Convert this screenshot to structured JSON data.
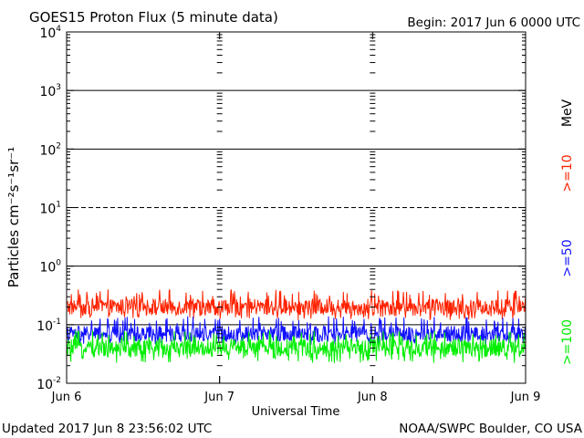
{
  "chart_data": {
    "type": "line",
    "title": "GOES15 Proton Flux (5 minute data)",
    "begin_label": "Begin: 2017 Jun 6 0000 UTC",
    "xlabel": "Universal Time",
    "ylabel": "Particles cm⁻²s⁻¹sr⁻¹",
    "y_scale": "log",
    "ylim": [
      0.01,
      10000
    ],
    "y_ticks": [
      {
        "value": 10000,
        "base": "10",
        "exp": "4"
      },
      {
        "value": 1000,
        "base": "10",
        "exp": "3"
      },
      {
        "value": 100,
        "base": "10",
        "exp": "2"
      },
      {
        "value": 10,
        "base": "10",
        "exp": "1"
      },
      {
        "value": 1,
        "base": "10",
        "exp": "0"
      },
      {
        "value": 0.1,
        "base": "10",
        "exp": "-1"
      },
      {
        "value": 0.01,
        "base": "10",
        "exp": "-2"
      }
    ],
    "categories": [
      "Jun 6",
      "Jun 7",
      "Jun 8",
      "Jun 9"
    ],
    "threshold_lines": [
      {
        "value": 1000,
        "style": "solid"
      },
      {
        "value": 100,
        "style": "solid"
      },
      {
        "value": 10,
        "style": "dashed"
      },
      {
        "value": 1,
        "style": "solid"
      },
      {
        "value": 0.1,
        "style": "solid"
      }
    ],
    "energy_unit_label": "MeV",
    "series": [
      {
        "name": ">=10",
        "color": "#ff2200",
        "typical": 0.2,
        "low": 0.12,
        "high": 0.4
      },
      {
        "name": ">=50",
        "color": "#1010ff",
        "typical": 0.07,
        "low": 0.045,
        "high": 0.14
      },
      {
        "name": ">=100",
        "color": "#00ee00",
        "typical": 0.04,
        "low": 0.022,
        "high": 0.08
      }
    ],
    "grid": false
  },
  "footer": {
    "updated": "Updated 2017 Jun  8 23:56:02 UTC",
    "source": "NOAA/SWPC Boulder, CO USA"
  }
}
